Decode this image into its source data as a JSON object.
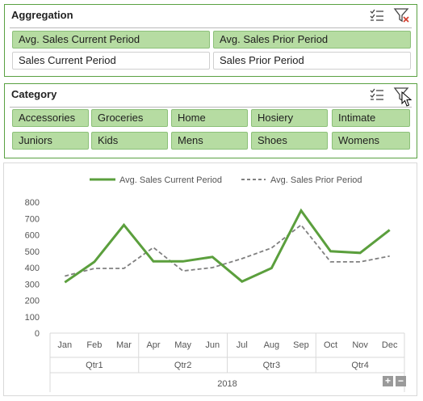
{
  "aggregation": {
    "title": "Aggregation",
    "items": [
      {
        "label": "Avg. Sales Current Period",
        "selected": true
      },
      {
        "label": "Avg. Sales Prior Period",
        "selected": true
      },
      {
        "label": "Sales Current Period",
        "selected": false
      },
      {
        "label": "Sales Prior Period",
        "selected": false
      }
    ],
    "icons": [
      "multi-select-icon",
      "clear-filter-icon"
    ]
  },
  "category": {
    "title": "Category",
    "items": [
      {
        "label": "Accessories",
        "selected": true
      },
      {
        "label": "Groceries",
        "selected": true
      },
      {
        "label": "Home",
        "selected": true
      },
      {
        "label": "Hosiery",
        "selected": true
      },
      {
        "label": "Intimate",
        "selected": true
      },
      {
        "label": "Juniors",
        "selected": true
      },
      {
        "label": "Kids",
        "selected": true
      },
      {
        "label": "Mens",
        "selected": true
      },
      {
        "label": "Shoes",
        "selected": true
      },
      {
        "label": "Womens",
        "selected": true
      }
    ],
    "icons": [
      "multi-select-icon",
      "clear-filter-icon"
    ]
  },
  "colors": {
    "accent": "#5aa142",
    "selected_fill": "#b6dca2",
    "current_line": "#5b9f3d",
    "prior_line": "#808080"
  },
  "chart_data": {
    "type": "line",
    "categories": [
      "Jan",
      "Feb",
      "Mar",
      "Apr",
      "May",
      "Jun",
      "Jul",
      "Aug",
      "Sep",
      "Oct",
      "Nov",
      "Dec"
    ],
    "quarters": [
      "Qtr1",
      "Qtr2",
      "Qtr3",
      "Qtr4"
    ],
    "year": "2018",
    "series": [
      {
        "name": "Avg. Sales Current Period",
        "values": [
          310,
          435,
          660,
          438,
          438,
          465,
          315,
          397,
          748,
          500,
          490,
          630
        ]
      },
      {
        "name": "Avg. Sales Prior Period",
        "values": [
          348,
          395,
          395,
          523,
          380,
          400,
          455,
          520,
          660,
          435,
          435,
          470
        ]
      }
    ],
    "ylim": [
      0,
      800
    ],
    "yticks": [
      "0",
      "100",
      "200",
      "300",
      "400",
      "500",
      "600",
      "700",
      "800"
    ],
    "grid": false,
    "legend": "top"
  },
  "zoom": {
    "plus": "+",
    "minus": "−"
  }
}
